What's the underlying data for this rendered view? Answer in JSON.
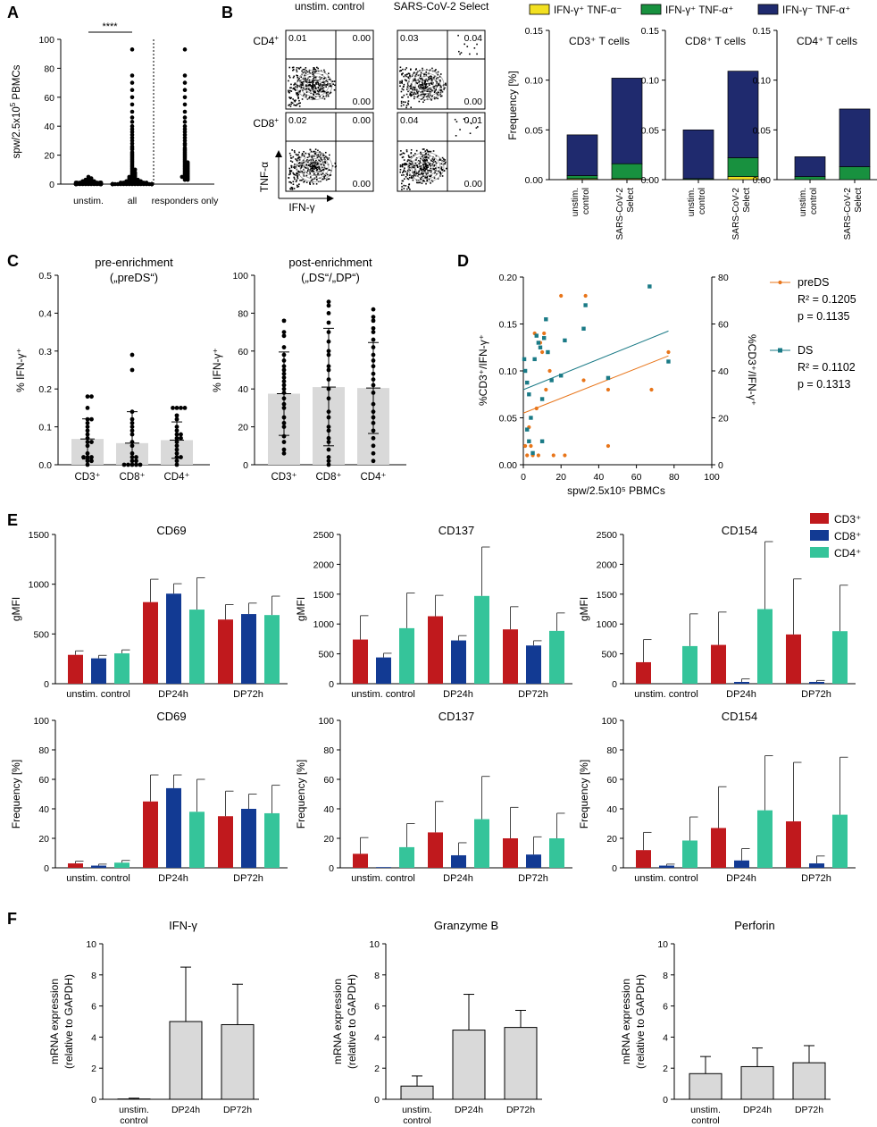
{
  "panel_letters": [
    "A",
    "B",
    "C",
    "D",
    "E",
    "F"
  ],
  "chart_data": [
    {
      "id": "A",
      "type": "scatter",
      "ylabel": "spw/2.5x10",
      "ylabel_sup": "5",
      "ylabel_suffix": " PBMCs",
      "ylim": [
        0,
        100
      ],
      "yticks": [
        0,
        20,
        40,
        60,
        80,
        100
      ],
      "categories": [
        "unstim.",
        "all",
        "responders only"
      ],
      "significance": "****",
      "points": [
        [
          0,
          0,
          0,
          0,
          0,
          0,
          0,
          0,
          0,
          0,
          0,
          0,
          0,
          0,
          0,
          0,
          0,
          0,
          0,
          0,
          1,
          1,
          1,
          1,
          1,
          1,
          1,
          1,
          1,
          1,
          1,
          1,
          2,
          2,
          2,
          2,
          2,
          3,
          3,
          3,
          4,
          4,
          5
        ],
        [
          0,
          0,
          0,
          0,
          0,
          0,
          0,
          0,
          0,
          0,
          0,
          0,
          0,
          0,
          0,
          0,
          0,
          0,
          0,
          0,
          0,
          0,
          0,
          0,
          0,
          0,
          1,
          1,
          1,
          1,
          1,
          1,
          1,
          1,
          1,
          1,
          2,
          2,
          2,
          2,
          2,
          2,
          3,
          3,
          3,
          3,
          4,
          4,
          4,
          5,
          5,
          5,
          6,
          6,
          7,
          7,
          8,
          8,
          9,
          10,
          10,
          11,
          12,
          13,
          14,
          15,
          16,
          17,
          18,
          19,
          20,
          21,
          22,
          24,
          25,
          26,
          28,
          30,
          32,
          34,
          36,
          38,
          40,
          43,
          46,
          50,
          55,
          60,
          65,
          70,
          75,
          93
        ],
        [
          3,
          3,
          4,
          4,
          5,
          5,
          5,
          6,
          6,
          7,
          7,
          8,
          8,
          9,
          9,
          10,
          10,
          11,
          11,
          12,
          12,
          13,
          13,
          14,
          14,
          15,
          15,
          16,
          17,
          18,
          19,
          20,
          21,
          22,
          23,
          24,
          25,
          27,
          28,
          30,
          32,
          34,
          36,
          38,
          40,
          43,
          46,
          50,
          55,
          60,
          65,
          70,
          75,
          93
        ]
      ]
    },
    {
      "id": "B-flow",
      "type": "flow-cytometry",
      "columns": [
        "unstim. control",
        "SARS-CoV-2 Select"
      ],
      "rows": [
        "CD4",
        "CD8"
      ],
      "row_sup": "+",
      "quadrants": [
        [
          [
            "0.01",
            "0.00",
            "0.00"
          ],
          [
            "0.03",
            "0.04",
            "0.00"
          ]
        ],
        [
          [
            "0.02",
            "0.00",
            "0.00"
          ],
          [
            "0.04",
            "0.01",
            "0.00"
          ]
        ]
      ],
      "xlabel": "IFN-γ",
      "ylabel": "TNF-α"
    },
    {
      "id": "B-bar",
      "type": "bar",
      "stacked": true,
      "legend": [
        "IFN-γ⁺ TNF-α⁻",
        "IFN-γ⁺ TNF-α⁺",
        "IFN-γ⁻ TNF-α⁺"
      ],
      "colors": [
        "#f2e021",
        "#18913f",
        "#1f2a6e"
      ],
      "ylabel": "Frequency [%]",
      "ylim": [
        0,
        0.15
      ],
      "yticks": [
        "0.00",
        "0.05",
        "0.10",
        "0.15"
      ],
      "categories": [
        "unstim. control",
        "SARS-CoV-2 Select"
      ],
      "subplots": [
        {
          "title": "CD3⁺ T cells",
          "stacks": [
            [
              0.001,
              0.003,
              0.041
            ],
            [
              0.001,
              0.015,
              0.086
            ]
          ]
        },
        {
          "title": "CD8⁺ T cells",
          "stacks": [
            [
              0.0,
              0.001,
              0.049
            ],
            [
              0.003,
              0.019,
              0.087
            ]
          ]
        },
        {
          "title": "CD4⁺ T cells",
          "stacks": [
            [
              0.0,
              0.003,
              0.02
            ],
            [
              0.0,
              0.013,
              0.058
            ]
          ]
        }
      ]
    },
    {
      "id": "C",
      "type": "bar-scatter",
      "subplots": [
        {
          "title": "pre-enrichment",
          "subtitle": "(„preDS“)",
          "ylabel": "% IFN-γ⁺",
          "ylim": [
            0,
            0.5
          ],
          "yticks": [
            "0.0",
            "0.1",
            "0.2",
            "0.3",
            "0.4",
            "0.5"
          ],
          "categories": [
            "CD3⁺",
            "CD8⁺",
            "CD4⁺"
          ],
          "means": [
            0.068,
            0.057,
            0.065
          ],
          "sd": [
            0.053,
            0.083,
            0.048
          ],
          "points": [
            [
              0.0,
              0.01,
              0.01,
              0.02,
              0.02,
              0.02,
              0.03,
              0.05,
              0.06,
              0.06,
              0.07,
              0.08,
              0.09,
              0.1,
              0.11,
              0.12,
              0.12,
              0.15,
              0.18,
              0.18
            ],
            [
              0.0,
              0.0,
              0.0,
              0.0,
              0.0,
              0.01,
              0.01,
              0.02,
              0.02,
              0.03,
              0.05,
              0.06,
              0.08,
              0.09,
              0.1,
              0.11,
              0.12,
              0.14,
              0.25,
              0.29
            ],
            [
              0.0,
              0.01,
              0.02,
              0.02,
              0.03,
              0.04,
              0.05,
              0.06,
              0.07,
              0.07,
              0.08,
              0.08,
              0.09,
              0.1,
              0.12,
              0.13,
              0.15,
              0.15,
              0.15,
              0.15
            ]
          ]
        },
        {
          "title": "post-enrichment",
          "subtitle": "(„DS“/„DP“)",
          "ylabel": "% IFN-γ⁺",
          "ylim": [
            0,
            100
          ],
          "yticks": [
            "0",
            "20",
            "40",
            "60",
            "80",
            "100"
          ],
          "categories": [
            "CD3⁺",
            "CD8⁺",
            "CD4⁺"
          ],
          "means": [
            37.5,
            41,
            40.5
          ],
          "sd": [
            22,
            31,
            24
          ],
          "points": [
            [
              6,
              8,
              12,
              15,
              20,
              22,
              25,
              30,
              32,
              35,
              38,
              40,
              42,
              44,
              46,
              48,
              50,
              52,
              55,
              58,
              62,
              68,
              70,
              76
            ],
            [
              0,
              2,
              4,
              8,
              12,
              14,
              18,
              20,
              25,
              28,
              35,
              40,
              45,
              50,
              52,
              58,
              60,
              65,
              70,
              75,
              80,
              84,
              86
            ],
            [
              2,
              6,
              10,
              14,
              18,
              22,
              25,
              28,
              32,
              38,
              42,
              45,
              48,
              52,
              55,
              58,
              62,
              66,
              70,
              72,
              76,
              78,
              82
            ]
          ]
        }
      ]
    },
    {
      "id": "D",
      "type": "scatter",
      "xlabel": "spw/2.5x10⁵ PBMCs",
      "xlim": [
        0,
        100
      ],
      "xticks": [
        0,
        20,
        40,
        60,
        80,
        100
      ],
      "ylabel_left": "%CD3⁺/IFN-γ⁺",
      "ylim_left": [
        0,
        0.2
      ],
      "yticks_left": [
        "0.00",
        "0.05",
        "0.10",
        "0.15",
        "0.20"
      ],
      "ylabel_right": "%CD3⁺/IFN-γ⁺",
      "ylim_right": [
        0,
        80
      ],
      "yticks_right": [
        "0",
        "20",
        "40",
        "60",
        "80"
      ],
      "series": [
        {
          "name": "preDS",
          "r2": "R² = 0.1205",
          "p": "p = 0.1135",
          "color": "#e8751a",
          "axis": "left",
          "x": [
            1,
            2,
            3,
            4,
            5,
            6,
            7,
            8,
            9,
            10,
            11,
            12,
            14,
            16,
            20,
            22,
            32,
            33,
            45,
            45,
            68,
            77
          ],
          "y": [
            0.02,
            0.01,
            0.04,
            0.02,
            0.01,
            0.14,
            0.06,
            0.01,
            0.13,
            0.12,
            0.14,
            0.08,
            0.1,
            0.01,
            0.18,
            0.01,
            0.09,
            0.18,
            0.08,
            0.02,
            0.08,
            0.12
          ],
          "fit": [
            [
              0,
              0.055
            ],
            [
              77,
              0.116
            ]
          ]
        },
        {
          "name": "DS",
          "r2": "R² = 0.1102",
          "p": "p = 0.1313",
          "color": "#1a7a86",
          "axis": "right",
          "x": [
            0.5,
            1,
            2,
            2,
            3,
            3,
            4,
            5,
            6,
            7,
            8,
            9,
            10,
            10,
            11,
            12,
            13,
            15,
            20,
            22,
            32,
            33,
            45,
            67,
            77
          ],
          "y": [
            45,
            40,
            35,
            15,
            30,
            10,
            20,
            5,
            45,
            55,
            52,
            50,
            10,
            28,
            54,
            62,
            48,
            36,
            38,
            53,
            58,
            68,
            37,
            76,
            44
          ],
          "fit": [
            [
              0,
              32
            ],
            [
              77,
              57
            ]
          ]
        }
      ]
    },
    {
      "id": "E",
      "type": "bar",
      "grouped": true,
      "legend": [
        "CD3⁺",
        "CD8⁺",
        "CD4⁺"
      ],
      "colors": [
        "#c0191d",
        "#123a93",
        "#35c49a"
      ],
      "categories": [
        "unstim. control",
        "DP24h",
        "DP72h"
      ],
      "subplots": [
        {
          "title": "CD69",
          "ylabel": "gMFI",
          "ylim": [
            0,
            1500
          ],
          "yticks": [
            "0",
            "500",
            "1000",
            "1500"
          ],
          "values": [
            [
              290,
              255,
              305
            ],
            [
              820,
              905,
              745
            ],
            [
              645,
              700,
              690
            ]
          ],
          "err": [
            [
              40,
              30,
              35
            ],
            [
              230,
              100,
              320
            ],
            [
              150,
              110,
              190
            ]
          ]
        },
        {
          "title": "CD137",
          "ylabel": "gMFI",
          "ylim": [
            0,
            2500
          ],
          "yticks": [
            "0",
            "500",
            "1000",
            "1500",
            "2000",
            "2500"
          ],
          "values": [
            [
              740,
              440,
              930
            ],
            [
              1130,
              725,
              1470
            ],
            [
              910,
              640,
              885
            ]
          ],
          "err": [
            [
              400,
              70,
              590
            ],
            [
              350,
              80,
              820
            ],
            [
              380,
              80,
              300
            ]
          ]
        },
        {
          "title": "CD154",
          "ylabel": "gMFI",
          "ylim": [
            0,
            2500
          ],
          "yticks": [
            "0",
            "500",
            "1000",
            "1500",
            "2000",
            "2500"
          ],
          "values": [
            [
              360,
              0,
              630
            ],
            [
              650,
              30,
              1250
            ],
            [
              825,
              30,
              880
            ]
          ],
          "err": [
            [
              380,
              0,
              540
            ],
            [
              550,
              50,
              1130
            ],
            [
              930,
              25,
              770
            ]
          ]
        },
        {
          "title": "CD69",
          "ylabel": "Frequency [%]",
          "ylim": [
            0,
            100
          ],
          "yticks": [
            "0",
            "20",
            "40",
            "60",
            "80",
            "100"
          ],
          "values": [
            [
              3,
              1.5,
              3.5
            ],
            [
              45,
              54,
              38
            ],
            [
              35,
              40,
              37
            ]
          ],
          "err": [
            [
              1.5,
              1,
              1.5
            ],
            [
              18,
              9,
              22
            ],
            [
              17,
              10,
              19
            ]
          ]
        },
        {
          "title": "CD137",
          "ylabel": "Frequency [%]",
          "ylim": [
            0,
            100
          ],
          "yticks": [
            "0",
            "20",
            "40",
            "60",
            "80",
            "100"
          ],
          "values": [
            [
              9.5,
              0.5,
              14
            ],
            [
              24,
              8.5,
              33
            ],
            [
              20,
              9,
              20
            ]
          ],
          "err": [
            [
              11,
              0,
              16
            ],
            [
              21,
              8.5,
              29
            ],
            [
              21,
              12,
              17
            ]
          ]
        },
        {
          "title": "CD154",
          "ylabel": "Frequency [%]",
          "ylim": [
            0,
            100
          ],
          "yticks": [
            "0",
            "20",
            "40",
            "60",
            "80",
            "100"
          ],
          "values": [
            [
              12,
              1.5,
              18.5
            ],
            [
              27,
              5,
              39
            ],
            [
              31.5,
              3,
              36
            ]
          ],
          "err": [
            [
              12,
              1,
              16
            ],
            [
              28,
              8,
              37
            ],
            [
              40,
              5,
              39
            ]
          ]
        }
      ]
    },
    {
      "id": "F",
      "type": "bar",
      "ylabel": "mRNA expression",
      "ylabel2": "(relative to GAPDH)",
      "categories": [
        "unstim.",
        "DP24h",
        "DP72h"
      ],
      "cat_line2": "control",
      "ylim": [
        0,
        10
      ],
      "yticks": [
        "0",
        "2",
        "4",
        "6",
        "8",
        "10"
      ],
      "color": "#d9d9d9",
      "subplots": [
        {
          "title": "IFN-γ",
          "values": [
            0.02,
            5.0,
            4.8
          ],
          "err": [
            0.05,
            3.5,
            2.6
          ]
        },
        {
          "title": "Granzyme B",
          "values": [
            0.85,
            4.45,
            4.62
          ],
          "err": [
            0.65,
            2.3,
            1.1
          ]
        },
        {
          "title": "Perforin",
          "values": [
            1.65,
            2.1,
            2.35
          ],
          "err": [
            1.1,
            1.2,
            1.1
          ]
        }
      ]
    }
  ]
}
